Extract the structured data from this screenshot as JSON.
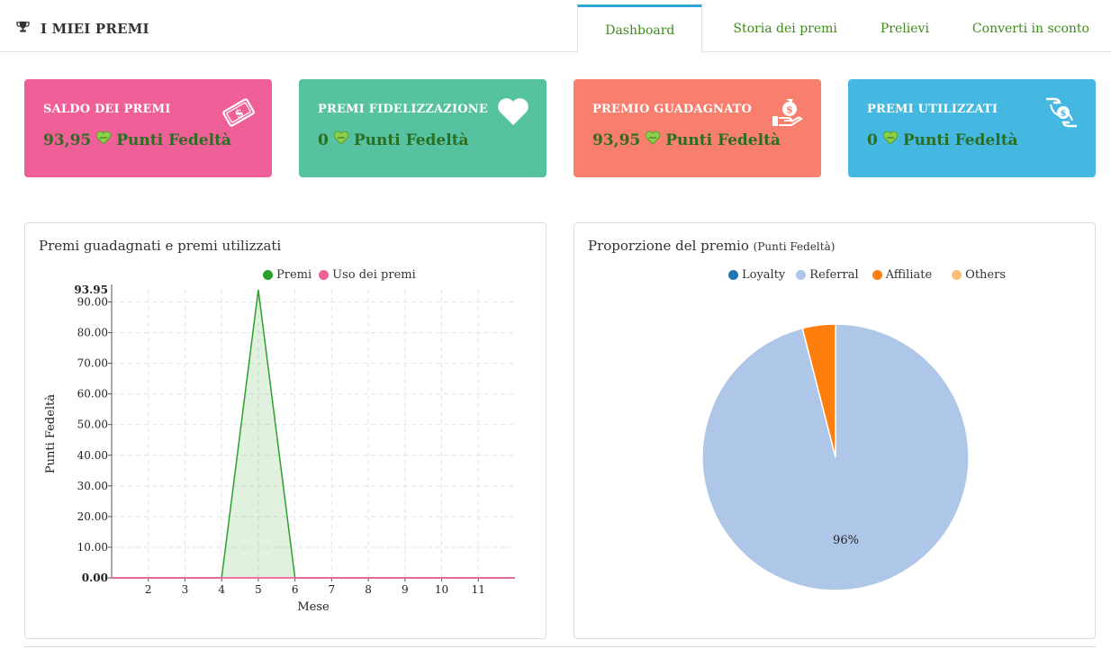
{
  "header": {
    "title": "I MIEI PREMI",
    "tabs": [
      {
        "label": "Dashboard",
        "active": true
      },
      {
        "label": "Storia dei premi",
        "active": false
      },
      {
        "label": "Prelievi",
        "active": false
      },
      {
        "label": "Converti in sconto",
        "active": false
      }
    ]
  },
  "cards": [
    {
      "title": "SALDO DEI PREMI",
      "amount": "93,95",
      "unit": "Punti Fedeltà",
      "icon": "money-bill-icon",
      "color": "#ef5f98"
    },
    {
      "title": "PREMI FIDELIZZAZIONE",
      "amount": "0",
      "unit": "Punti Fedeltà",
      "icon": "heart-icon",
      "color": "#56c29f"
    },
    {
      "title": "PREMIO GUADAGNATO",
      "amount": "93,95",
      "unit": "Punti Fedeltà",
      "icon": "money-bag-hand-icon",
      "color": "#f87f6e"
    },
    {
      "title": "PREMI UTILIZZATI",
      "amount": "0",
      "unit": "Punti Fedeltà",
      "icon": "hand-exchange-icon",
      "color": "#45b8e1"
    }
  ],
  "chart_data": [
    {
      "type": "area",
      "title": "Premi guadagnati e premi utilizzati",
      "xlabel": "Mese",
      "ylabel": "Punti Fedeltà",
      "x": [
        1,
        2,
        3,
        4,
        5,
        6,
        7,
        8,
        9,
        10,
        11,
        12
      ],
      "xticks": [
        "2",
        "3",
        "4",
        "5",
        "6",
        "7",
        "8",
        "9",
        "10",
        "11"
      ],
      "yticks": [
        "0.00",
        "10.00",
        "20.00",
        "30.00",
        "40.00",
        "50.00",
        "60.00",
        "70.00",
        "80.00",
        "90.00"
      ],
      "ylim": [
        0,
        93.95
      ],
      "max_label": "93.95",
      "grid": true,
      "legend_position": "top",
      "series": [
        {
          "name": "Premi",
          "color": "#2ca02c",
          "values": [
            0,
            0,
            0,
            0,
            93.95,
            0,
            0,
            0,
            0,
            0,
            0,
            0
          ]
        },
        {
          "name": "Uso dei premi",
          "color": "#ef5f98",
          "values": [
            0,
            0,
            0,
            0,
            0,
            0,
            0,
            0,
            0,
            0,
            0,
            0
          ]
        }
      ]
    },
    {
      "type": "pie",
      "title": "Proporzione del premio",
      "subtitle": "(Punti Fedeltà)",
      "legend_position": "top",
      "slices": [
        {
          "name": "Loyalty",
          "value": 0,
          "color": "#1f77b4"
        },
        {
          "name": "Referral",
          "value": 96,
          "color": "#aec7e8",
          "label": "96%"
        },
        {
          "name": "Affiliate",
          "value": 4,
          "color": "#ff7f0e"
        },
        {
          "name": "Others",
          "value": 0,
          "color": "#ffbb78"
        }
      ]
    }
  ]
}
